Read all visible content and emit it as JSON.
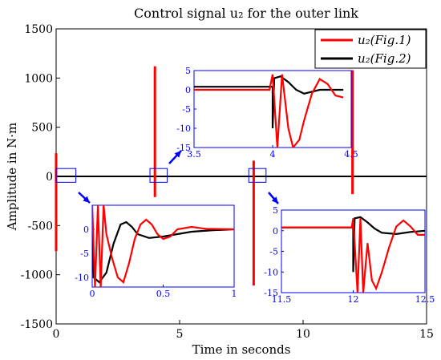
{
  "chart_data": {
    "type": "line",
    "title": "Control signal u₂ for the outer link",
    "xlabel": "Time in seconds",
    "ylabel": "Amplitude in N·m",
    "xlim": [
      0,
      15
    ],
    "ylim": [
      -1500,
      1500
    ],
    "xticks": [
      0,
      5,
      10,
      15
    ],
    "yticks": [
      -1500,
      -1000,
      -500,
      0,
      500,
      1000,
      1500
    ],
    "legend": {
      "placement": "top-right",
      "entries": [
        {
          "label": "u₂(Fig.1)",
          "color": "#ff0000"
        },
        {
          "label": "u₂(Fig.2)",
          "color": "#000000"
        }
      ]
    },
    "series": [
      {
        "name": "u₂(Fig.1)",
        "color": "#ff0000",
        "spikes": [
          {
            "t": 0.0,
            "min": -760,
            "max": 235
          },
          {
            "t": 4.0,
            "min": -210,
            "max": 1120
          },
          {
            "t": 8.0,
            "min": -1110,
            "max": 160
          },
          {
            "t": 12.0,
            "min": -180,
            "max": 1080
          }
        ],
        "baseline": 0
      },
      {
        "name": "u₂(Fig.2)",
        "color": "#000000",
        "baseline": 0
      }
    ],
    "insets": [
      {
        "id": "inset-a",
        "xlim": [
          3.5,
          4.5
        ],
        "ylim": [
          -15,
          5
        ],
        "xticks": [
          3.5,
          4,
          4.5
        ],
        "yticks": [
          -15,
          -10,
          -5,
          0,
          5
        ],
        "red": [
          [
            3.5,
            0
          ],
          [
            3.98,
            0
          ],
          [
            4.0,
            4
          ],
          [
            4.03,
            -15
          ],
          [
            4.06,
            4
          ],
          [
            4.08,
            -3
          ],
          [
            4.1,
            -10
          ],
          [
            4.13,
            -15
          ],
          [
            4.17,
            -13
          ],
          [
            4.2,
            -8
          ],
          [
            4.25,
            -1
          ],
          [
            4.3,
            2.8
          ],
          [
            4.35,
            1.5
          ],
          [
            4.4,
            -1.5
          ],
          [
            4.45,
            -2
          ]
        ],
        "black": [
          [
            3.5,
            0.8
          ],
          [
            4.0,
            0.8
          ],
          [
            4.0,
            -10
          ],
          [
            4.01,
            3
          ],
          [
            4.05,
            3.5
          ],
          [
            4.1,
            2
          ],
          [
            4.15,
            0
          ],
          [
            4.2,
            -1
          ],
          [
            4.25,
            -0.5
          ],
          [
            4.3,
            0
          ],
          [
            4.45,
            0
          ]
        ]
      },
      {
        "id": "inset-b",
        "xlim": [
          0,
          1
        ],
        "ylim": [
          -12,
          5
        ],
        "xticks": [
          0,
          0.5,
          1
        ],
        "yticks": [
          -10,
          -5,
          0
        ],
        "red": [
          [
            0,
            5
          ],
          [
            0.02,
            -12
          ],
          [
            0.04,
            5
          ],
          [
            0.06,
            -12
          ],
          [
            0.08,
            5
          ],
          [
            0.1,
            -1
          ],
          [
            0.14,
            -6
          ],
          [
            0.18,
            -10
          ],
          [
            0.22,
            -11
          ],
          [
            0.26,
            -7
          ],
          [
            0.3,
            -2
          ],
          [
            0.34,
            1
          ],
          [
            0.38,
            2
          ],
          [
            0.42,
            1
          ],
          [
            0.46,
            -1
          ],
          [
            0.5,
            -2
          ],
          [
            0.55,
            -1.5
          ],
          [
            0.6,
            0
          ],
          [
            0.7,
            0.5
          ],
          [
            0.8,
            0.1
          ],
          [
            1,
            0
          ]
        ],
        "black": [
          [
            0,
            1
          ],
          [
            0.01,
            -10
          ],
          [
            0.05,
            -11
          ],
          [
            0.1,
            -9
          ],
          [
            0.15,
            -3
          ],
          [
            0.2,
            1
          ],
          [
            0.24,
            1.5
          ],
          [
            0.28,
            0.5
          ],
          [
            0.32,
            -1
          ],
          [
            0.4,
            -1.8
          ],
          [
            0.5,
            -1.5
          ],
          [
            0.6,
            -1
          ],
          [
            0.7,
            -0.5
          ],
          [
            0.85,
            -0.2
          ],
          [
            1,
            0
          ]
        ]
      },
      {
        "id": "inset-c",
        "xlim": [
          11.5,
          12.5
        ],
        "ylim": [
          -15,
          5
        ],
        "xticks": [
          11.5,
          12,
          12.5
        ],
        "yticks": [
          -15,
          -10,
          -5,
          0,
          5
        ],
        "red": [
          [
            11.5,
            0.8
          ],
          [
            11.99,
            0.8
          ],
          [
            12.0,
            3
          ],
          [
            12.03,
            -15
          ],
          [
            12.05,
            3
          ],
          [
            12.07,
            -15
          ],
          [
            12.1,
            -3
          ],
          [
            12.13,
            -12
          ],
          [
            12.16,
            -14
          ],
          [
            12.2,
            -10
          ],
          [
            12.25,
            -4
          ],
          [
            12.3,
            1
          ],
          [
            12.35,
            2.5
          ],
          [
            12.4,
            1
          ],
          [
            12.45,
            -1
          ],
          [
            12.5,
            -1
          ]
        ],
        "black": [
          [
            11.5,
            0.8
          ],
          [
            12.0,
            0.8
          ],
          [
            12.0,
            -10
          ],
          [
            12.01,
            3
          ],
          [
            12.05,
            3.3
          ],
          [
            12.1,
            2
          ],
          [
            12.15,
            0.5
          ],
          [
            12.2,
            -0.5
          ],
          [
            12.3,
            -0.8
          ],
          [
            12.4,
            -0.3
          ],
          [
            12.5,
            0
          ]
        ]
      }
    ]
  }
}
